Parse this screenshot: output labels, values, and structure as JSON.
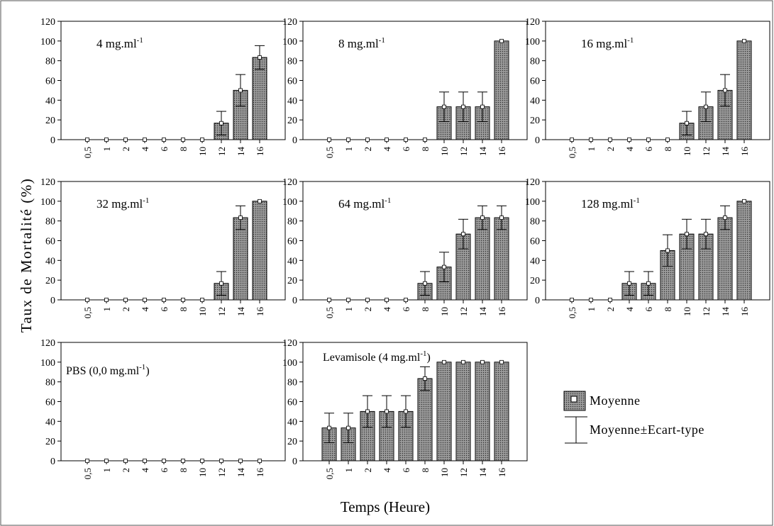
{
  "figure": {
    "ylabel": "Taux de Mortalité (%)",
    "xlabel": "Temps (Heure)",
    "legend": {
      "mean_label": "Moyenne",
      "sd_label": "Moyenne±Ecart-type"
    }
  },
  "chart_data": [
    {
      "type": "bar",
      "title": "4 mg.ml",
      "title_sup": "-1",
      "categories": [
        "0,5",
        "1",
        "2",
        "4",
        "6",
        "8",
        "10",
        "12",
        "14",
        "16"
      ],
      "values": [
        0,
        0,
        0,
        0,
        0,
        0,
        0,
        16.7,
        50,
        83.3
      ],
      "errors": [
        0,
        0,
        0,
        0,
        0,
        0,
        0,
        12,
        16,
        12
      ],
      "ylim": [
        0,
        120
      ],
      "yticks": [
        0,
        20,
        40,
        60,
        80,
        100,
        120
      ]
    },
    {
      "type": "bar",
      "title": "8 mg.ml",
      "title_sup": "-1",
      "categories": [
        "0,5",
        "1",
        "2",
        "4",
        "6",
        "8",
        "10",
        "12",
        "14",
        "16"
      ],
      "values": [
        0,
        0,
        0,
        0,
        0,
        0,
        33.3,
        33.3,
        33.3,
        100
      ],
      "errors": [
        0,
        0,
        0,
        0,
        0,
        0,
        15,
        15,
        15,
        0
      ],
      "ylim": [
        0,
        120
      ],
      "yticks": [
        0,
        20,
        40,
        60,
        80,
        100,
        120
      ]
    },
    {
      "type": "bar",
      "title": "16 mg.ml",
      "title_sup": "-1",
      "categories": [
        "0,5",
        "1",
        "2",
        "4",
        "6",
        "8",
        "10",
        "12",
        "14",
        "16"
      ],
      "values": [
        0,
        0,
        0,
        0,
        0,
        0,
        16.7,
        33.3,
        50,
        100
      ],
      "errors": [
        0,
        0,
        0,
        0,
        0,
        0,
        12,
        15,
        16,
        0
      ],
      "ylim": [
        0,
        120
      ],
      "yticks": [
        0,
        20,
        40,
        60,
        80,
        100,
        120
      ]
    },
    {
      "type": "bar",
      "title": "32 mg.ml",
      "title_sup": "-1",
      "categories": [
        "0,5",
        "1",
        "2",
        "4",
        "6",
        "8",
        "10",
        "12",
        "14",
        "16"
      ],
      "values": [
        0,
        0,
        0,
        0,
        0,
        0,
        0,
        16.7,
        83.3,
        100
      ],
      "errors": [
        0,
        0,
        0,
        0,
        0,
        0,
        0,
        12,
        12,
        0
      ],
      "ylim": [
        0,
        120
      ],
      "yticks": [
        0,
        20,
        40,
        60,
        80,
        100,
        120
      ]
    },
    {
      "type": "bar",
      "title": "64 mg.ml",
      "title_sup": "-1",
      "categories": [
        "0,5",
        "1",
        "2",
        "4",
        "6",
        "8",
        "10",
        "12",
        "14",
        "16"
      ],
      "values": [
        0,
        0,
        0,
        0,
        0,
        16.7,
        33.3,
        66.7,
        83.3,
        83.3
      ],
      "errors": [
        0,
        0,
        0,
        0,
        0,
        12,
        15,
        15,
        12,
        12
      ],
      "ylim": [
        0,
        120
      ],
      "yticks": [
        0,
        20,
        40,
        60,
        80,
        100,
        120
      ]
    },
    {
      "type": "bar",
      "title": "128 mg.ml",
      "title_sup": "-1",
      "categories": [
        "0,5",
        "1",
        "2",
        "4",
        "6",
        "8",
        "10",
        "12",
        "14",
        "16"
      ],
      "values": [
        0,
        0,
        0,
        16.7,
        16.7,
        50,
        66.7,
        66.7,
        83.3,
        100
      ],
      "errors": [
        0,
        0,
        0,
        12,
        12,
        16,
        15,
        15,
        12,
        0
      ],
      "ylim": [
        0,
        120
      ],
      "yticks": [
        0,
        20,
        40,
        60,
        80,
        100,
        120
      ]
    },
    {
      "type": "bar",
      "title": "PBS (0,0 mg.ml",
      "title_sup": "-1",
      "title_suffix": ")",
      "categories": [
        "0,5",
        "1",
        "2",
        "4",
        "6",
        "8",
        "10",
        "12",
        "14",
        "16"
      ],
      "values": [
        0,
        0,
        0,
        0,
        0,
        0,
        0,
        0,
        0,
        0
      ],
      "errors": [
        0,
        0,
        0,
        0,
        0,
        0,
        0,
        0,
        0,
        0
      ],
      "ylim": [
        0,
        120
      ],
      "yticks": [
        0,
        20,
        40,
        60,
        80,
        100,
        120
      ]
    },
    {
      "type": "bar",
      "title": "Levamisole (4 mg.ml",
      "title_sup": "-1",
      "title_suffix": ")",
      "categories": [
        "0,5",
        "1",
        "2",
        "4",
        "6",
        "8",
        "10",
        "12",
        "14",
        "16"
      ],
      "values": [
        33.3,
        33.3,
        50,
        50,
        50,
        83.3,
        100,
        100,
        100,
        100
      ],
      "errors": [
        15,
        15,
        16,
        16,
        16,
        12,
        0,
        0,
        0,
        0
      ],
      "ylim": [
        0,
        120
      ],
      "yticks": [
        0,
        20,
        40,
        60,
        80,
        100,
        120
      ]
    }
  ]
}
